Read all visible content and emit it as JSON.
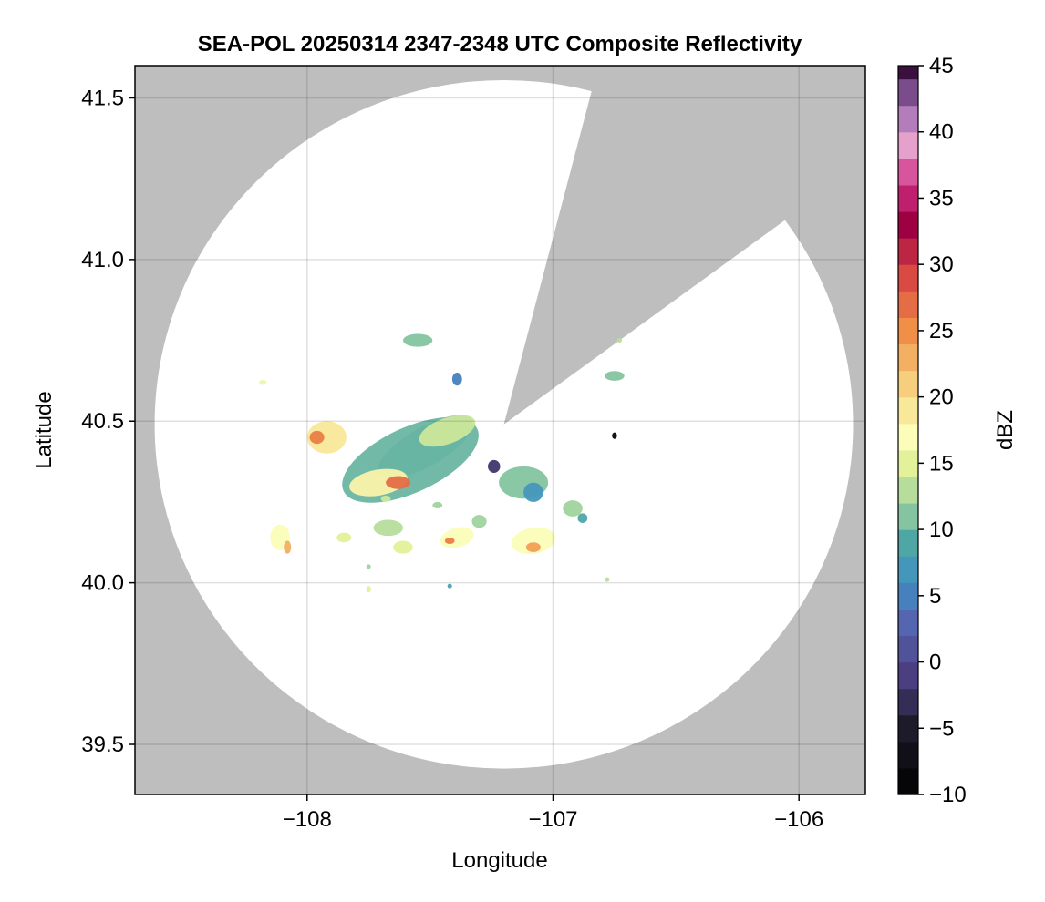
{
  "chart_data": {
    "type": "heatmap",
    "title": "SEA-POL 20250314 2347-2348 UTC Composite Reflectivity",
    "xlabel": "Longitude",
    "ylabel": "Latitude",
    "xlim": [
      -108.7,
      -105.73
    ],
    "ylim": [
      39.345,
      41.6
    ],
    "grid": true,
    "background_color": "#BEBEBE",
    "xticks": [
      -108,
      -107,
      -106
    ],
    "xtick_labels": [
      "−108",
      "−107",
      "−106"
    ],
    "yticks": [
      39.5,
      40.0,
      40.5,
      41.0,
      41.5
    ],
    "ytick_labels": [
      "39.5",
      "40.0",
      "40.5",
      "41.0",
      "41.5"
    ],
    "radar": {
      "center_lon": -107.2,
      "center_lat": 40.49,
      "outer_point_east_lon": -105.78,
      "outer_point_north_lat": 41.555,
      "blocked_sector": {
        "edge_point_1": [
          -106.84,
          41.53
        ],
        "edge_point_2": [
          -106.06,
          41.12
        ]
      }
    },
    "echoes": [
      {
        "lon": -107.52,
        "lat": 40.42,
        "rx": 0.22,
        "ry": 0.06,
        "rot": -30,
        "dbz": 6
      },
      {
        "lon": -107.58,
        "lat": 40.38,
        "rx": 0.3,
        "ry": 0.1,
        "rot": -25,
        "dbz": 10
      },
      {
        "lon": -107.43,
        "lat": 40.47,
        "rx": 0.12,
        "ry": 0.04,
        "rot": -20,
        "dbz": 14
      },
      {
        "lon": -107.92,
        "lat": 40.45,
        "rx": 0.08,
        "ry": 0.05,
        "rot": 0,
        "dbz": 19
      },
      {
        "lon": -107.96,
        "lat": 40.45,
        "rx": 0.03,
        "ry": 0.02,
        "rot": 0,
        "dbz": 26
      },
      {
        "lon": -107.71,
        "lat": 40.31,
        "rx": 0.12,
        "ry": 0.04,
        "rot": -10,
        "dbz": 18
      },
      {
        "lon": -107.63,
        "lat": 40.31,
        "rx": 0.05,
        "ry": 0.02,
        "rot": 0,
        "dbz": 27
      },
      {
        "lon": -107.55,
        "lat": 40.75,
        "rx": 0.06,
        "ry": 0.02,
        "rot": 0,
        "dbz": 11
      },
      {
        "lon": -107.39,
        "lat": 40.63,
        "rx": 0.02,
        "ry": 0.02,
        "rot": 0,
        "dbz": 5
      },
      {
        "lon": -108.18,
        "lat": 40.62,
        "rx": 0.015,
        "ry": 0.008,
        "rot": 0,
        "dbz": 16
      },
      {
        "lon": -107.24,
        "lat": 40.36,
        "rx": 0.025,
        "ry": 0.02,
        "rot": 0,
        "dbz": -2
      },
      {
        "lon": -107.12,
        "lat": 40.31,
        "rx": 0.1,
        "ry": 0.05,
        "rot": 0,
        "dbz": 11
      },
      {
        "lon": -107.08,
        "lat": 40.28,
        "rx": 0.04,
        "ry": 0.03,
        "rot": 0,
        "dbz": 7
      },
      {
        "lon": -106.75,
        "lat": 40.455,
        "rx": 0.01,
        "ry": 0.01,
        "rot": 0,
        "dbz": -9
      },
      {
        "lon": -106.92,
        "lat": 40.23,
        "rx": 0.04,
        "ry": 0.025,
        "rot": 0,
        "dbz": 12
      },
      {
        "lon": -106.88,
        "lat": 40.2,
        "rx": 0.02,
        "ry": 0.015,
        "rot": 0,
        "dbz": 9
      },
      {
        "lon": -106.75,
        "lat": 40.64,
        "rx": 0.04,
        "ry": 0.015,
        "rot": 0,
        "dbz": 11
      },
      {
        "lon": -106.73,
        "lat": 40.75,
        "rx": 0.01,
        "ry": 0.005,
        "rot": 0,
        "dbz": 13
      },
      {
        "lon": -108.11,
        "lat": 40.14,
        "rx": 0.04,
        "ry": 0.04,
        "rot": 0,
        "dbz": 17
      },
      {
        "lon": -108.08,
        "lat": 40.11,
        "rx": 0.015,
        "ry": 0.02,
        "rot": 0,
        "dbz": 23
      },
      {
        "lon": -107.85,
        "lat": 40.14,
        "rx": 0.03,
        "ry": 0.015,
        "rot": 0,
        "dbz": 15
      },
      {
        "lon": -107.67,
        "lat": 40.17,
        "rx": 0.06,
        "ry": 0.025,
        "rot": 0,
        "dbz": 13
      },
      {
        "lon": -107.61,
        "lat": 40.11,
        "rx": 0.04,
        "ry": 0.02,
        "rot": 0,
        "dbz": 15
      },
      {
        "lon": -107.39,
        "lat": 40.14,
        "rx": 0.07,
        "ry": 0.03,
        "rot": -15,
        "dbz": 17
      },
      {
        "lon": -107.42,
        "lat": 40.13,
        "rx": 0.02,
        "ry": 0.01,
        "rot": 0,
        "dbz": 26
      },
      {
        "lon": -107.3,
        "lat": 40.19,
        "rx": 0.03,
        "ry": 0.02,
        "rot": 0,
        "dbz": 12
      },
      {
        "lon": -107.08,
        "lat": 40.13,
        "rx": 0.09,
        "ry": 0.04,
        "rot": -10,
        "dbz": 17
      },
      {
        "lon": -107.08,
        "lat": 40.11,
        "rx": 0.03,
        "ry": 0.015,
        "rot": 0,
        "dbz": 24
      },
      {
        "lon": -107.47,
        "lat": 40.24,
        "rx": 0.02,
        "ry": 0.01,
        "rot": 0,
        "dbz": 12
      },
      {
        "lon": -107.68,
        "lat": 40.26,
        "rx": 0.02,
        "ry": 0.01,
        "rot": 0,
        "dbz": 14
      },
      {
        "lon": -107.75,
        "lat": 40.05,
        "rx": 0.006,
        "ry": 0.006,
        "rot": 0,
        "dbz": 12
      },
      {
        "lon": -107.75,
        "lat": 39.98,
        "rx": 0.01,
        "ry": 0.01,
        "rot": 0,
        "dbz": 15
      },
      {
        "lon": -107.42,
        "lat": 39.99,
        "rx": 0.006,
        "ry": 0.004,
        "rot": 0,
        "dbz": 8
      },
      {
        "lon": -106.78,
        "lat": 40.01,
        "rx": 0.005,
        "ry": 0.004,
        "rot": 0,
        "dbz": 13
      }
    ]
  },
  "colorbar": {
    "label": "dBZ",
    "min": -10,
    "max": 45,
    "step": 2,
    "ticks": [
      -10,
      -5,
      0,
      5,
      10,
      15,
      20,
      25,
      30,
      35,
      40,
      45
    ],
    "tick_labels": [
      "−10",
      "−5",
      "0",
      "5",
      "10",
      "15",
      "20",
      "25",
      "30",
      "35",
      "40",
      "45"
    ],
    "colors": [
      {
        "v": -10,
        "c": "#000000"
      },
      {
        "v": -5,
        "c": "#1d1a29"
      },
      {
        "v": -1,
        "c": "#4b3f82"
      },
      {
        "v": 3,
        "c": "#5566b0"
      },
      {
        "v": 6,
        "c": "#3f8fc5"
      },
      {
        "v": 9,
        "c": "#4fa7a5"
      },
      {
        "v": 12,
        "c": "#9fd39d"
      },
      {
        "v": 15,
        "c": "#e3f19a"
      },
      {
        "v": 17,
        "c": "#fbfdb8"
      },
      {
        "v": 20,
        "c": "#f7de8a"
      },
      {
        "v": 25,
        "c": "#f08f48"
      },
      {
        "v": 29,
        "c": "#d94b42"
      },
      {
        "v": 33,
        "c": "#9e0142"
      },
      {
        "v": 36,
        "c": "#cf2f84"
      },
      {
        "v": 39,
        "c": "#e5a0cb"
      },
      {
        "v": 42,
        "c": "#9a6bb3"
      },
      {
        "v": 45,
        "c": "#3b0f3f"
      }
    ]
  }
}
